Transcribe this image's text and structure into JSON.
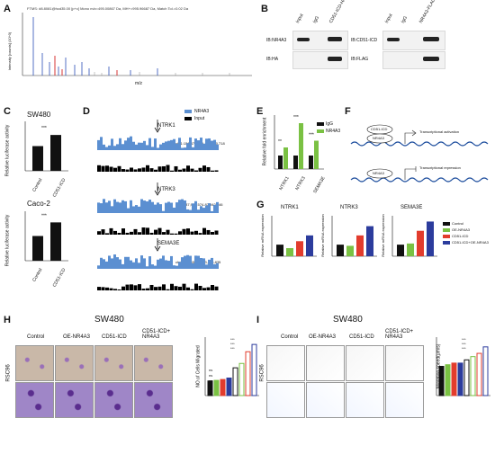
{
  "panels": [
    "A",
    "B",
    "C",
    "D",
    "E",
    "F",
    "G",
    "H",
    "I"
  ],
  "colors": {
    "ctrl": "#111111",
    "nr4a3": "#7ac143",
    "icd": "#e23c2d",
    "combo": "#2c3c9d",
    "track": "#5b8fd1",
    "input": "#000000"
  },
  "A": {
    "header": "FTMS: #8.8081@hcd35.00 [p+c] Mono m/z=495.00867 Da, MH+=995.96687 Da, Match Tol.=0.02 Da",
    "ylabel": "Intensity [counts] (10^3)",
    "xlabel": "m/z"
  },
  "B": {
    "left_cols": [
      "Input",
      "IgG",
      "CD51-ICD-HA"
    ],
    "left_rows": [
      "IB:NR4A3",
      "IB:HA"
    ],
    "right_cols": [
      "Input",
      "IgG",
      "NR4A3-FLAG"
    ],
    "right_rows": [
      "IB:CD51-ICD",
      "IB:FLAG"
    ]
  },
  "C": {
    "charts": [
      {
        "title": "SW480",
        "ylabel": "Relative luciferase activity",
        "categories": [
          "Control",
          "CD51-ICD"
        ],
        "values": [
          1.0,
          1.45
        ],
        "sig": "***"
      },
      {
        "title": "Caco-2",
        "ylabel": "Relative luciferase activity",
        "categories": [
          "Control",
          "CD51-ICD"
        ],
        "values": [
          1.0,
          1.55
        ],
        "sig": "***"
      }
    ]
  },
  "D": {
    "legend": [
      "NR4A3",
      "Input"
    ],
    "tracks": [
      {
        "gene": "NTRK1",
        "coords": "chr1:156,878,109-156,890,718"
      },
      {
        "gene": "NTRK3",
        "coords": "chr15:87,941,574-87,942,646"
      },
      {
        "gene": "SEMA3E",
        "coords": "chr7:83,465,300-83,466,835"
      }
    ]
  },
  "E": {
    "ylabel": "Relative fold enrichment",
    "legend": [
      "IgG",
      "NR4A3"
    ],
    "categories": [
      "NTRK1",
      "NTRK3",
      "SEMA3E"
    ],
    "series": [
      {
        "name": "IgG",
        "values": [
          1.0,
          1.0,
          1.0
        ]
      },
      {
        "name": "NR4A3",
        "values": [
          1.6,
          3.4,
          2.1
        ]
      }
    ],
    "sigs": [
      "**",
      "***",
      "***"
    ],
    "ylim": [
      0,
      4
    ]
  },
  "F": {
    "rows": [
      {
        "top": "CD51-ICD",
        "bottom": "NR4A3",
        "label": "Transcriptional activation"
      },
      {
        "top": "",
        "bottom": "NR4A3",
        "label": "Transcriptional repression"
      }
    ]
  },
  "G": {
    "ylabel": "Relative mRNA expression",
    "legend": [
      "Control",
      "OE-NR4A3",
      "CD51-ICD",
      "CD51-ICD+OE-NR4A3"
    ],
    "charts": [
      {
        "title": "NTRK1",
        "values": [
          1.0,
          0.7,
          1.3,
          1.8
        ]
      },
      {
        "title": "NTRK3",
        "values": [
          1.0,
          0.9,
          1.8,
          2.6
        ]
      },
      {
        "title": "SEMA3E",
        "values": [
          1.0,
          1.1,
          2.2,
          3.0
        ]
      }
    ],
    "categories": [
      "Control",
      "OE-NR4A3",
      "CD51-ICD",
      "CD51-ICD+OE-NR4A3"
    ]
  },
  "H": {
    "title": "SW480",
    "cols": [
      "Control",
      "OE-NR4A3",
      "CD51-ICD",
      "CD51-ICD+ NR4A3"
    ],
    "rowlabel": "RSC96",
    "ylabel": "NO.of Cells Migrated",
    "values": [
      50,
      52,
      55,
      60,
      95,
      110,
      150,
      175
    ],
    "sigs": [
      "ns",
      "ns",
      "ns",
      "***",
      "***",
      "***"
    ]
  },
  "I": {
    "title": "SW480",
    "cols": [
      "Control",
      "OE-NR4A3",
      "CD51-ICD",
      "CD51-ICD+ NR4A3"
    ],
    "rowlabel": "RSC96",
    "ylabel": "Migration speed(μm/s)",
    "values": [
      0.9,
      0.95,
      1.0,
      1.0,
      1.1,
      1.2,
      1.3,
      1.5
    ],
    "sigs": [
      "ns",
      "ns",
      "ns",
      "***",
      "***",
      "***"
    ]
  }
}
